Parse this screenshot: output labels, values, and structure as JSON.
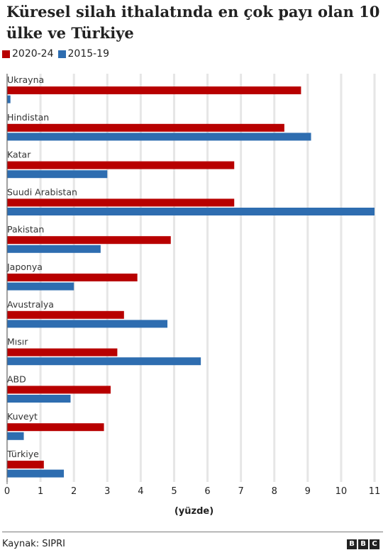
{
  "title": "Küresel silah ithalatında en çok payı olan 10 ülke ve Türkiye",
  "source": "Kaynak: SIPRI",
  "logo": [
    "B",
    "B",
    "C"
  ],
  "chart_data": {
    "type": "bar",
    "orientation": "horizontal",
    "categories": [
      "Ukrayna",
      "Hindistan",
      "Katar",
      "Suudi Arabistan",
      "Pakistan",
      "Japonya",
      "Avustralya",
      "Mısır",
      "ABD",
      "Kuveyt",
      "Türkiye"
    ],
    "series": [
      {
        "name": "2020-24",
        "color": "#b80000",
        "values": [
          8.8,
          8.3,
          6.8,
          6.8,
          4.9,
          3.9,
          3.5,
          3.3,
          3.1,
          2.9,
          1.1
        ]
      },
      {
        "name": "2015-19",
        "color": "#2e6db0",
        "values": [
          0.1,
          9.1,
          3.0,
          11.0,
          2.8,
          2.0,
          4.8,
          5.8,
          1.9,
          0.5,
          1.7
        ]
      }
    ],
    "xlabel": "(yüzde)",
    "ylabel": "",
    "xlim": [
      0,
      11
    ],
    "xticks": [
      "0",
      "1",
      "2",
      "3",
      "4",
      "5",
      "6",
      "7",
      "8",
      "9",
      "10",
      "11"
    ],
    "grid": true,
    "legend_position": "top-left"
  }
}
